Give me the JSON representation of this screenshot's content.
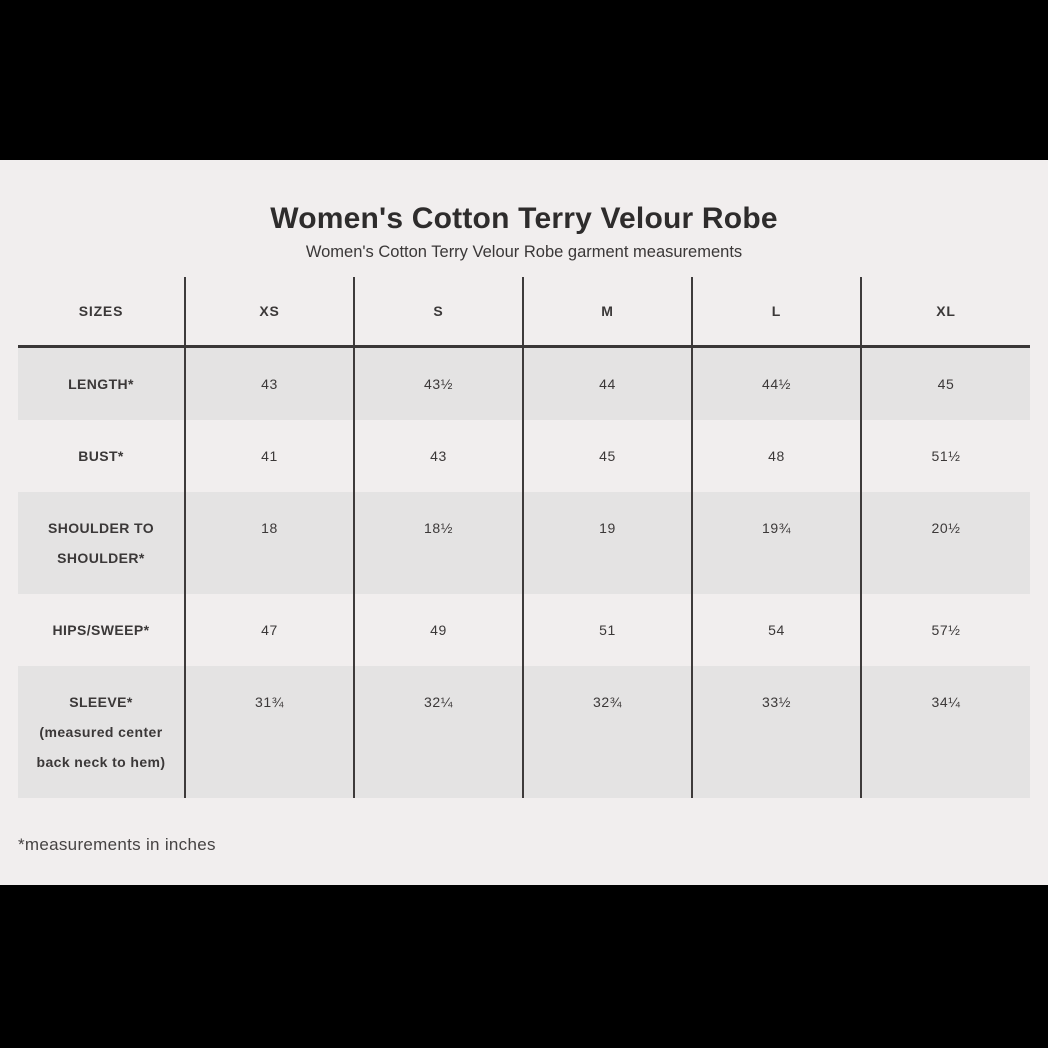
{
  "header": {
    "title": "Women's Cotton Terry Velour Robe",
    "subtitle": "Women's Cotton Terry Velour Robe garment measurements"
  },
  "table": {
    "columns": [
      "SIZES",
      "XS",
      "S",
      "M",
      "L",
      "XL"
    ],
    "rows": [
      {
        "label": "LENGTH*",
        "values": [
          "43",
          "43½",
          "44",
          "44½",
          "45"
        ]
      },
      {
        "label": "BUST*",
        "values": [
          "41",
          "43",
          "45",
          "48",
          "51½"
        ]
      },
      {
        "label": "SHOULDER TO\nSHOULDER*",
        "values": [
          "18",
          "18½",
          "19",
          "19¾",
          "20½"
        ]
      },
      {
        "label": "HIPS/SWEEP*",
        "values": [
          "47",
          "49",
          "51",
          "54",
          "57½"
        ]
      },
      {
        "label": "SLEEVE*\n(measured center\nback neck to hem)",
        "values": [
          "31¾",
          "32¼",
          "32¾",
          "33½",
          "34¼"
        ]
      }
    ]
  },
  "footnote": "*measurements in inches",
  "colors": {
    "letterbox": "#000000",
    "background": "#f1eeee",
    "row_shade": "#e4e3e3",
    "grid_line": "#3e3b3b",
    "text": "#3b3838"
  }
}
